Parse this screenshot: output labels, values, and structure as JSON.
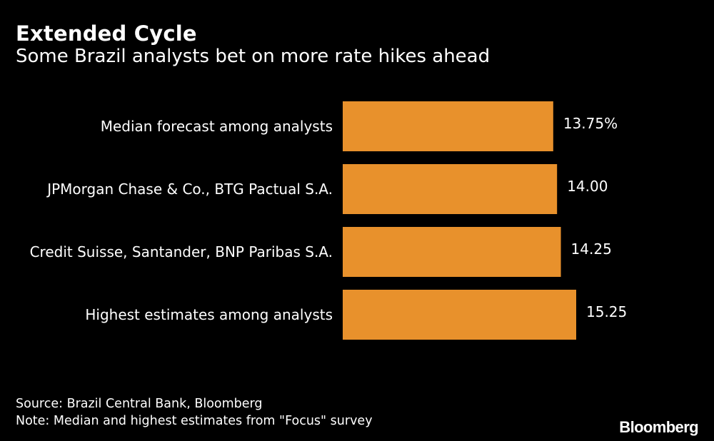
{
  "chart_data": {
    "type": "bar",
    "orientation": "horizontal",
    "title": "Extended Cycle",
    "subtitle": "Some Brazil analysts bet on more rate hikes ahead",
    "categories": [
      "Median forecast among analysts",
      "JPMorgan Chase & Co., BTG Pactual S.A.",
      "Credit Suisse, Santander, BNP Paribas S.A.",
      "Highest estimates among analysts"
    ],
    "values": [
      13.75,
      14.0,
      14.25,
      15.25
    ],
    "value_labels": [
      "13.75%",
      "14.00",
      "14.25",
      "15.25"
    ],
    "xlim": [
      0,
      15.25
    ],
    "grid": false,
    "legend": "none",
    "bar_color": "#E8912C",
    "background_color": "#000000",
    "text_color": "#ffffff"
  },
  "footer": {
    "source": "Source: Brazil Central Bank, Bloomberg",
    "note": "Note: Median and highest estimates from \"Focus\" survey",
    "logo": "Bloomberg"
  }
}
